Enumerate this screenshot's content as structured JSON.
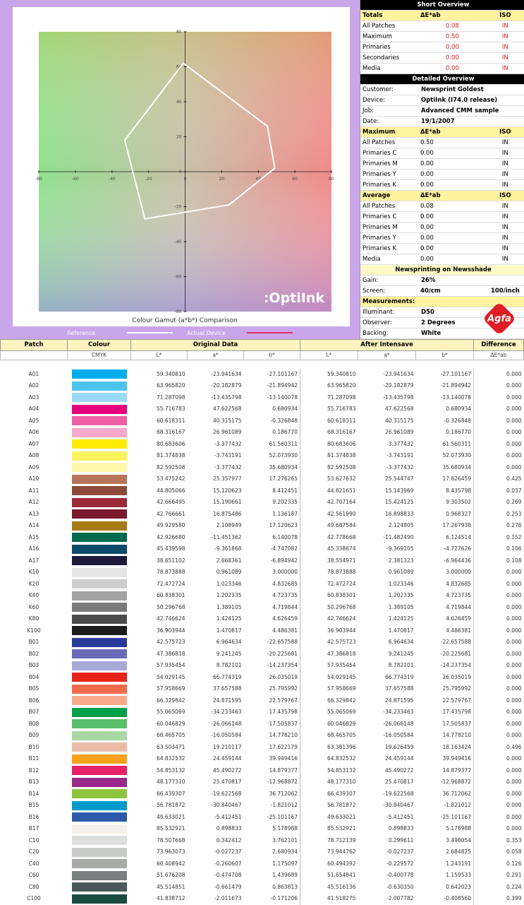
{
  "chart_data": {
    "type": "line",
    "title": "Colour Gamut (a*b*) Comparison",
    "annotation": ":OptiInk",
    "x": [
      -1,
      45,
      49,
      24,
      -22,
      -33
    ],
    "series": [
      {
        "name": "Reference",
        "color": "#ffffff",
        "values": [
          62,
          26,
          2,
          -19,
          -27,
          18
        ]
      },
      {
        "name": "Actual Device",
        "color": "#e0306a",
        "values": [
          62,
          26,
          2,
          -19,
          -27,
          18
        ]
      }
    ],
    "xlim": [
      -80,
      80
    ],
    "xticks": [
      -80,
      -60,
      -40,
      -20,
      0,
      20,
      40,
      60,
      80
    ],
    "ylim": [
      -80,
      80
    ],
    "yticks": [
      -80,
      -60,
      -40,
      -20,
      0,
      20,
      40,
      60,
      80
    ]
  },
  "short_overview": {
    "title": "Short Overview",
    "header": [
      "Totals",
      "ΔE*ab",
      "ISO"
    ],
    "rows": [
      [
        "All Patches",
        "0.08",
        "IN"
      ],
      [
        "Maximum",
        "0.50",
        "IN"
      ],
      [
        "Primaries",
        "0.00",
        "IN"
      ],
      [
        "Secondaries",
        "0.00",
        "IN"
      ],
      [
        "Media",
        "0.00",
        "IN"
      ]
    ]
  },
  "detailed_overview": {
    "title": "Detailed Overview",
    "info": [
      [
        "Customer:",
        "Newsprint Goldest"
      ],
      [
        "Device:",
        "OptiInk (I74.0 release)"
      ],
      [
        "Job:",
        "Advanced CMM sample"
      ],
      [
        "Date:",
        "19/1/2007"
      ]
    ],
    "maximum": {
      "header": [
        "Maximum",
        "ΔE*ab",
        "ISO"
      ],
      "rows": [
        [
          "All Patches",
          "0.50",
          "IN"
        ],
        [
          "Primaries C",
          "0.00",
          "IN"
        ],
        [
          "Primaries M",
          "0.00",
          "IN"
        ],
        [
          "Primaries Y",
          "0.00",
          "IN"
        ],
        [
          "Primaries K",
          "0.00",
          "IN"
        ]
      ]
    },
    "average": {
      "header": [
        "Average",
        "ΔE*ab",
        "ISO"
      ],
      "rows": [
        [
          "All Patches",
          "0.08",
          "IN"
        ],
        [
          "Primaries C",
          "0.00",
          "IN"
        ],
        [
          "Primaries M",
          "0.00",
          "IN"
        ],
        [
          "Primaries Y",
          "0.00",
          "IN"
        ],
        [
          "Primaries K",
          "0.00",
          "IN"
        ],
        [
          "Media",
          "0.00",
          "IN"
        ]
      ]
    }
  },
  "printing": {
    "title": "Newsprinting on Newsshade",
    "rows": [
      [
        "Gain:",
        "26%"
      ],
      [
        "Screen:",
        "40/cm",
        "100/inch"
      ]
    ]
  },
  "measurements": {
    "title": "Measurements:",
    "rows": [
      [
        "Illuminant:",
        "D50"
      ],
      [
        "Observer:",
        "2 Degrees"
      ],
      [
        "Backing:",
        "White"
      ]
    ],
    "logo": "Agfa"
  },
  "table": {
    "header": {
      "patch": "Patch",
      "colour": "Colour",
      "original": "Original Data",
      "after": "After Intensave",
      "difference": "Difference"
    },
    "subheader": {
      "colour": "CMYK",
      "original": [
        "L*",
        "a*",
        "b*"
      ],
      "after": [
        "L*",
        "a*",
        "b*"
      ],
      "difference": "ΔE*ab"
    },
    "rows": [
      {
        "patch": "A01",
        "color": "#00aeef",
        "original": [
          "59.340810",
          "-23.941634",
          "-27.101167"
        ],
        "after": [
          "59.340810",
          "-23.941634",
          "-27.101167"
        ],
        "difference": "0.000"
      },
      {
        "patch": "A02",
        "color": "#4cc4f0",
        "original": [
          "63.965820",
          "-20.182879",
          "-21.894942"
        ],
        "after": [
          "63.965820",
          "-20.182879",
          "-21.894942"
        ],
        "difference": "0.000"
      },
      {
        "patch": "A03",
        "color": "#9ad9f5",
        "original": [
          "71.287098",
          "-13.435798",
          "-13.140078"
        ],
        "after": [
          "71.287098",
          "-13.435798",
          "-13.140078"
        ],
        "difference": "0.000"
      },
      {
        "patch": "A04",
        "color": "#e6007e",
        "original": [
          "55.716783",
          "47.622568",
          "0.680934"
        ],
        "after": [
          "55.716783",
          "47.622568",
          "0.680934"
        ],
        "difference": "0.000"
      },
      {
        "patch": "A05",
        "color": "#ee5fa3",
        "original": [
          "60.618311",
          "40.315175",
          "-0.326848"
        ],
        "after": [
          "60.618311",
          "40.315175",
          "-0.326848"
        ],
        "difference": "0.000"
      },
      {
        "patch": "A06",
        "color": "#f6a9cb",
        "original": [
          "68.316167",
          "26.961089",
          "0.186770"
        ],
        "after": [
          "68.316167",
          "26.961089",
          "0.186770"
        ],
        "difference": "0.000"
      },
      {
        "patch": "A07",
        "color": "#ffec00",
        "original": [
          "80.683606",
          "-3.377432",
          "61.560311"
        ],
        "after": [
          "80.683606",
          "-3.377432",
          "61.560311"
        ],
        "difference": "0.000"
      },
      {
        "patch": "A08",
        "color": "#fff25a",
        "original": [
          "81.374838",
          "-3.743191",
          "52.073930"
        ],
        "after": [
          "81.374838",
          "-3.743191",
          "52.073930"
        ],
        "difference": "0.000"
      },
      {
        "patch": "A09",
        "color": "#fff8a8",
        "original": [
          "82.592508",
          "-3.377432",
          "35.680934"
        ],
        "after": [
          "82.592508",
          "-3.377432",
          "35.680934"
        ],
        "difference": "0.000"
      },
      {
        "patch": "A10",
        "color": "#b8745a",
        "original": [
          "53.475242",
          "25.357977",
          "17.276265"
        ],
        "after": [
          "53.627632",
          "25.544747",
          "17.626459"
        ],
        "difference": "0.425"
      },
      {
        "patch": "A11",
        "color": "#8c4a3c",
        "original": [
          "44.805066",
          "15.120623",
          "8.412451"
        ],
        "after": [
          "44.821651",
          "15.143969",
          "8.435798"
        ],
        "difference": "0.037"
      },
      {
        "patch": "A12",
        "color": "#9c2a3a",
        "original": [
          "42.666495",
          "15.190661",
          "9.202335"
        ],
        "after": [
          "42.707164",
          "15.424125",
          "9.303502"
        ],
        "difference": "0.269"
      },
      {
        "patch": "A13",
        "color": "#7a1a2c",
        "original": [
          "42.766661",
          "16.875486",
          "1.136187"
        ],
        "after": [
          "42.561990",
          "16.898833",
          "0.968327"
        ],
        "difference": "0.253"
      },
      {
        "patch": "A14",
        "color": "#a87a14",
        "original": [
          "49.929580",
          "2.108949",
          "17.120623"
        ],
        "after": [
          "49.687584",
          "2.124805",
          "17.267938"
        ],
        "difference": "0.276"
      },
      {
        "patch": "A15",
        "color": "#006b4c",
        "original": [
          "42.926680",
          "-11.451362",
          "6.140078"
        ],
        "after": [
          "42.778668",
          "-11.482490",
          "6.124514"
        ],
        "difference": "0.152"
      },
      {
        "patch": "A16",
        "color": "#0b4a68",
        "original": [
          "45.439598",
          "-9.361868",
          "-4.747082"
        ],
        "after": [
          "45.338674",
          "-9.369105",
          "-4.727626"
        ],
        "difference": "0.106"
      },
      {
        "patch": "A17",
        "color": "#1e1a3c",
        "original": [
          "38.651102",
          "2.668361",
          "-6.894942"
        ],
        "after": [
          "38.554971",
          "2.381323",
          "-6.964436"
        ],
        "difference": "0.108"
      },
      {
        "patch": "K10",
        "color": "#e6e6e6",
        "original": [
          "78.873888",
          "0.961089",
          "3.000000"
        ],
        "after": [
          "78.873888",
          "0.961089",
          "3.000000"
        ],
        "difference": "0.000"
      },
      {
        "patch": "K20",
        "color": "#cdcdcd",
        "original": [
          "72.472724",
          "1.023346",
          "4.832685"
        ],
        "after": [
          "72.472724",
          "1.023346",
          "4.832685"
        ],
        "difference": "0.000"
      },
      {
        "patch": "K40",
        "color": "#a2a2a2",
        "original": [
          "60.838301",
          "1.202335",
          "4.723735"
        ],
        "after": [
          "60.838301",
          "1.202335",
          "4.723735"
        ],
        "difference": "0.000"
      },
      {
        "patch": "K60",
        "color": "#7a7a7a",
        "original": [
          "50.296768",
          "1.389105",
          "4.719844"
        ],
        "after": [
          "50.296768",
          "1.389105",
          "4.719844"
        ],
        "difference": "0.000"
      },
      {
        "patch": "K80",
        "color": "#4c4c4c",
        "original": [
          "42.746624",
          "1.424125",
          "4.626459"
        ],
        "after": [
          "42.746624",
          "1.424125",
          "4.626459"
        ],
        "difference": "0.000"
      },
      {
        "patch": "K100",
        "color": "#1a1a1a",
        "original": [
          "36.903944",
          "1.470817",
          "4.486381"
        ],
        "after": [
          "36.903944",
          "1.470817",
          "4.486381"
        ],
        "difference": "0.000"
      },
      {
        "patch": "B01",
        "color": "#2a3a9a",
        "original": [
          "42.575723",
          "6.964634",
          "-22.657588"
        ],
        "after": [
          "42.575723",
          "6.964634",
          "-22.657588"
        ],
        "difference": "0.000"
      },
      {
        "patch": "B02",
        "color": "#6a6ab8",
        "original": [
          "47.386818",
          "9.241245",
          "-20.225681"
        ],
        "after": [
          "47.386818",
          "9.241245",
          "-20.225681"
        ],
        "difference": "0.000"
      },
      {
        "patch": "B03",
        "color": "#a9a9d8",
        "original": [
          "57.935454",
          "8.782101",
          "-14.237354"
        ],
        "after": [
          "57.935454",
          "8.782101",
          "-14.237354"
        ],
        "difference": "0.000"
      },
      {
        "patch": "B04",
        "color": "#e8231a",
        "original": [
          "54.029145",
          "66.774319",
          "26.035019"
        ],
        "after": [
          "54.029145",
          "66.774319",
          "26.035019"
        ],
        "difference": "0.000"
      },
      {
        "patch": "B05",
        "color": "#f26a4a",
        "original": [
          "57.958669",
          "37.657588",
          "25.795992"
        ],
        "after": [
          "57.958669",
          "37.657588",
          "25.795992"
        ],
        "difference": "0.000"
      },
      {
        "patch": "B06",
        "color": "#f7aa8c",
        "original": [
          "66.329842",
          "24.871595",
          "22.579767"
        ],
        "after": [
          "66.329842",
          "24.871595",
          "22.579767"
        ],
        "difference": "0.000"
      },
      {
        "patch": "B07",
        "color": "#00a04a",
        "original": [
          "55.065069",
          "-34.233463",
          "17.435798"
        ],
        "after": [
          "55.065069",
          "-34.233463",
          "17.435798"
        ],
        "difference": "0.000"
      },
      {
        "patch": "B08",
        "color": "#5abe6a",
        "original": [
          "60.046829",
          "-26.066148",
          "17.505837"
        ],
        "after": [
          "60.046829",
          "-26.066148",
          "17.505837"
        ],
        "difference": "0.000"
      },
      {
        "patch": "B09",
        "color": "#a8d8a2",
        "original": [
          "68.465705",
          "-16.050584",
          "14.778210"
        ],
        "after": [
          "68.465705",
          "-16.050584",
          "14.778210"
        ],
        "difference": "0.000"
      },
      {
        "patch": "B10",
        "color": "#ecbca8",
        "original": [
          "63.503471",
          "19.210117",
          "17.622179"
        ],
        "after": [
          "63.381396",
          "19.626459",
          "18.163424"
        ],
        "difference": "0.496"
      },
      {
        "patch": "B11",
        "color": "#f7a21a",
        "original": [
          "64.832532",
          "24.459144",
          "39.949416"
        ],
        "after": [
          "64.832532",
          "24.459144",
          "39.949416"
        ],
        "difference": "0.000"
      },
      {
        "patch": "B12",
        "color": "#e8206a",
        "original": [
          "54.853132",
          "45.490272",
          "14.879377"
        ],
        "after": [
          "54.853132",
          "45.490272",
          "14.879377"
        ],
        "difference": "0.000"
      },
      {
        "patch": "B13",
        "color": "#9a2a8a",
        "original": [
          "48.177310",
          "25.470817",
          "-12.968872"
        ],
        "after": [
          "48.177310",
          "25.470817",
          "-12.968872"
        ],
        "difference": "0.000"
      },
      {
        "patch": "B14",
        "color": "#8cc43c",
        "original": [
          "66.439307",
          "-19.622568",
          "36.712062"
        ],
        "after": [
          "66.439307",
          "-19.622568",
          "36.712062"
        ],
        "difference": "0.000"
      },
      {
        "patch": "B15",
        "color": "#009aca",
        "original": [
          "56.781872",
          "-30.840467",
          "-1.821012"
        ],
        "after": [
          "56.781872",
          "-30.840467",
          "-1.821012"
        ],
        "difference": "0.000"
      },
      {
        "patch": "B16",
        "color": "#2c5aa8",
        "original": [
          "49.633021",
          "-5.412451",
          "-25.101167"
        ],
        "after": [
          "49.633021",
          "-5.412451",
          "-25.101167"
        ],
        "difference": "0.000"
      },
      {
        "patch": "B17",
        "color": "#f6f0e8",
        "original": [
          "85.532921",
          "0.898833",
          "5.178988"
        ],
        "after": [
          "85.532921",
          "0.898833",
          "5.178988"
        ],
        "difference": "0.000"
      },
      {
        "patch": "C10",
        "color": "#dcdedc",
        "original": [
          "78.507668",
          "0.342412",
          "3.762101"
        ],
        "after": [
          "78.712139",
          "0.299611",
          "3.498054"
        ],
        "difference": "0.353"
      },
      {
        "patch": "C20",
        "color": "#c8cac8",
        "original": [
          "73.963073",
          "-0.027237",
          "2.680934"
        ],
        "after": [
          "73.944762",
          "-0.027237",
          "2.684825"
        ],
        "difference": "0.058"
      },
      {
        "patch": "C40",
        "color": "#a8aaa8",
        "original": [
          "60.408942",
          "-0.260607",
          "1.175097"
        ],
        "after": [
          "60.494392",
          "-0.229572",
          "1.243191"
        ],
        "difference": "0.126"
      },
      {
        "patch": "C60",
        "color": "#7a8080",
        "original": [
          "51.676208",
          "-0.474708",
          "1.439689"
        ],
        "after": [
          "51.654841",
          "-0.400778",
          "1.159533"
        ],
        "difference": "0.291"
      },
      {
        "patch": "C80",
        "color": "#4a5a5a",
        "original": [
          "45.514851",
          "-0.661479",
          "0.863813"
        ],
        "after": [
          "45.516136",
          "-0.630350",
          "0.642023"
        ],
        "difference": "0.224"
      },
      {
        "patch": "C100",
        "color": "#1a4a40",
        "original": [
          "41.838712",
          "-2.011673",
          "-0.171206"
        ],
        "after": [
          "41.518275",
          "-2.007782",
          "-0.408560"
        ],
        "difference": "0.399"
      }
    ]
  }
}
